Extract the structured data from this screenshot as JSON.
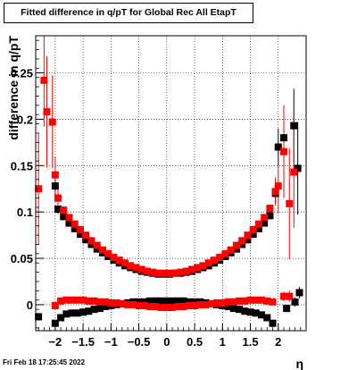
{
  "title": "Fitted difference in q/pT for Global Rec All EtapT",
  "footer_timestamp": "Fri Feb 18 17:25:45 2022",
  "chart_data": {
    "type": "scatter",
    "title": "Fitted difference in q/pT for Global Rec All EtapT",
    "xlabel": "η",
    "ylabel": "difference in q/pT",
    "xlim": [
      -2.35,
      2.5
    ],
    "ylim": [
      -0.028,
      0.29
    ],
    "grid": true,
    "x_ticks": [
      -2,
      -1.5,
      -1,
      -0.5,
      0,
      0.5,
      1,
      1.5,
      2
    ],
    "x_tick_labels": [
      "−2",
      "−1.5",
      "−1",
      "−0.5",
      "0",
      "0.5",
      "1",
      "1.5",
      "2"
    ],
    "y_ticks": [
      0,
      0.05,
      0.1,
      0.15,
      0.2,
      0.25
    ],
    "y_tick_labels": [
      "0",
      "0.05",
      "0.1",
      "0.15",
      "0.2",
      "0.25"
    ],
    "colors": {
      "black_series": "#000000",
      "red_series": "#ff0000"
    },
    "series": [
      {
        "color": "#000000",
        "marker": "square",
        "points": [
          {
            "x": -2.3,
            "y": -0.013,
            "e": 0.004
          },
          {
            "x": -2.0,
            "y": 0.128,
            "e": 0.015
          },
          {
            "x": -1.95,
            "y": 0.103,
            "e": 0.005
          },
          {
            "x": -1.85,
            "y": 0.095,
            "e": 0.003
          },
          {
            "x": -1.75,
            "y": 0.088,
            "e": 0.003
          },
          {
            "x": -1.65,
            "y": 0.082,
            "e": 0.002
          },
          {
            "x": -1.55,
            "y": 0.076,
            "e": 0.002
          },
          {
            "x": -1.45,
            "y": 0.07,
            "e": 0.002
          },
          {
            "x": -1.35,
            "y": 0.065,
            "e": 0.002
          },
          {
            "x": -1.25,
            "y": 0.06,
            "e": 0.002
          },
          {
            "x": -1.15,
            "y": 0.056,
            "e": 0.002
          },
          {
            "x": -1.05,
            "y": 0.052,
            "e": 0.002
          },
          {
            "x": -0.95,
            "y": 0.048,
            "e": 0.002
          },
          {
            "x": -0.85,
            "y": 0.045,
            "e": 0.002
          },
          {
            "x": -0.75,
            "y": 0.042,
            "e": 0.002
          },
          {
            "x": -0.65,
            "y": 0.04,
            "e": 0.002
          },
          {
            "x": -0.55,
            "y": 0.038,
            "e": 0.002
          },
          {
            "x": -0.45,
            "y": 0.036,
            "e": 0.002
          },
          {
            "x": -0.35,
            "y": 0.035,
            "e": 0.002
          },
          {
            "x": -0.25,
            "y": 0.034,
            "e": 0.002
          },
          {
            "x": -0.15,
            "y": 0.033,
            "e": 0.002
          },
          {
            "x": -0.05,
            "y": 0.033,
            "e": 0.002
          },
          {
            "x": 0.05,
            "y": 0.033,
            "e": 0.002
          },
          {
            "x": 0.15,
            "y": 0.034,
            "e": 0.002
          },
          {
            "x": 0.25,
            "y": 0.034,
            "e": 0.002
          },
          {
            "x": 0.35,
            "y": 0.035,
            "e": 0.002
          },
          {
            "x": 0.45,
            "y": 0.036,
            "e": 0.002
          },
          {
            "x": 0.55,
            "y": 0.038,
            "e": 0.002
          },
          {
            "x": 0.65,
            "y": 0.04,
            "e": 0.002
          },
          {
            "x": 0.75,
            "y": 0.042,
            "e": 0.002
          },
          {
            "x": 0.85,
            "y": 0.045,
            "e": 0.002
          },
          {
            "x": 0.95,
            "y": 0.048,
            "e": 0.002
          },
          {
            "x": 1.05,
            "y": 0.052,
            "e": 0.002
          },
          {
            "x": 1.15,
            "y": 0.056,
            "e": 0.002
          },
          {
            "x": 1.25,
            "y": 0.06,
            "e": 0.002
          },
          {
            "x": 1.35,
            "y": 0.065,
            "e": 0.002
          },
          {
            "x": 1.45,
            "y": 0.07,
            "e": 0.002
          },
          {
            "x": 1.55,
            "y": 0.076,
            "e": 0.002
          },
          {
            "x": 1.65,
            "y": 0.082,
            "e": 0.002
          },
          {
            "x": 1.75,
            "y": 0.088,
            "e": 0.003
          },
          {
            "x": 1.85,
            "y": 0.096,
            "e": 0.003
          },
          {
            "x": 1.95,
            "y": 0.12,
            "e": 0.01
          },
          {
            "x": 2.0,
            "y": 0.17,
            "e": 0.02
          },
          {
            "x": 2.1,
            "y": 0.18,
            "e": 0.03
          },
          {
            "x": 2.28,
            "y": 0.193,
            "e": 0.04
          },
          {
            "x": 2.35,
            "y": 0.147,
            "e": 0.05
          },
          {
            "x": -2.0,
            "y": -0.02,
            "e": 0.003
          },
          {
            "x": -1.9,
            "y": -0.014,
            "e": 0.002
          },
          {
            "x": -1.8,
            "y": -0.01,
            "e": 0.002
          },
          {
            "x": -1.7,
            "y": -0.009,
            "e": 0.002
          },
          {
            "x": -1.6,
            "y": -0.009,
            "e": 0.002
          },
          {
            "x": -1.5,
            "y": -0.008,
            "e": 0.002
          },
          {
            "x": -1.4,
            "y": -0.007,
            "e": 0.002
          },
          {
            "x": -1.3,
            "y": -0.005,
            "e": 0.002
          },
          {
            "x": -1.2,
            "y": -0.004,
            "e": 0.002
          },
          {
            "x": -1.1,
            "y": -0.002,
            "e": 0.002
          },
          {
            "x": -1.0,
            "y": -0.001,
            "e": 0.002
          },
          {
            "x": -0.9,
            "y": 0.0,
            "e": 0.002
          },
          {
            "x": -0.8,
            "y": 0.001,
            "e": 0.002
          },
          {
            "x": -0.7,
            "y": 0.002,
            "e": 0.002
          },
          {
            "x": -0.6,
            "y": 0.003,
            "e": 0.002
          },
          {
            "x": -0.5,
            "y": 0.003,
            "e": 0.002
          },
          {
            "x": -0.4,
            "y": 0.003,
            "e": 0.002
          },
          {
            "x": -0.3,
            "y": 0.004,
            "e": 0.002
          },
          {
            "x": -0.2,
            "y": 0.004,
            "e": 0.002
          },
          {
            "x": -0.1,
            "y": 0.004,
            "e": 0.002
          },
          {
            "x": 0.0,
            "y": 0.004,
            "e": 0.002
          },
          {
            "x": 0.1,
            "y": 0.004,
            "e": 0.002
          },
          {
            "x": 0.2,
            "y": 0.004,
            "e": 0.002
          },
          {
            "x": 0.3,
            "y": 0.004,
            "e": 0.002
          },
          {
            "x": 0.4,
            "y": 0.003,
            "e": 0.002
          },
          {
            "x": 0.5,
            "y": 0.003,
            "e": 0.002
          },
          {
            "x": 0.6,
            "y": 0.003,
            "e": 0.002
          },
          {
            "x": 0.7,
            "y": 0.002,
            "e": 0.002
          },
          {
            "x": 0.8,
            "y": 0.001,
            "e": 0.002
          },
          {
            "x": 0.9,
            "y": 0.0,
            "e": 0.002
          },
          {
            "x": 1.0,
            "y": -0.001,
            "e": 0.002
          },
          {
            "x": 1.1,
            "y": -0.002,
            "e": 0.002
          },
          {
            "x": 1.2,
            "y": -0.004,
            "e": 0.002
          },
          {
            "x": 1.3,
            "y": -0.005,
            "e": 0.002
          },
          {
            "x": 1.4,
            "y": -0.007,
            "e": 0.002
          },
          {
            "x": 1.5,
            "y": -0.008,
            "e": 0.002
          },
          {
            "x": 1.6,
            "y": -0.009,
            "e": 0.002
          },
          {
            "x": 1.7,
            "y": -0.011,
            "e": 0.002
          },
          {
            "x": 1.8,
            "y": -0.014,
            "e": 0.003
          },
          {
            "x": 1.9,
            "y": -0.02,
            "e": 0.003
          },
          {
            "x": 2.15,
            "y": -0.004,
            "e": 0.004
          },
          {
            "x": 2.3,
            "y": 0.003,
            "e": 0.005
          },
          {
            "x": 2.38,
            "y": 0.013,
            "e": 0.006
          }
        ]
      },
      {
        "color": "#ff0000",
        "marker": "square",
        "points": [
          {
            "x": -2.3,
            "y": 0.125,
            "e": 0.06
          },
          {
            "x": -2.2,
            "y": 0.242,
            "e": 0.05
          },
          {
            "x": -2.15,
            "y": 0.208,
            "e": 0.06
          },
          {
            "x": -2.05,
            "y": 0.197,
            "e": 0.05
          },
          {
            "x": -2.0,
            "y": 0.14,
            "e": 0.02
          },
          {
            "x": -1.95,
            "y": 0.115,
            "e": 0.01
          },
          {
            "x": -1.85,
            "y": 0.102,
            "e": 0.004
          },
          {
            "x": -1.75,
            "y": 0.094,
            "e": 0.003
          },
          {
            "x": -1.65,
            "y": 0.087,
            "e": 0.003
          },
          {
            "x": -1.55,
            "y": 0.081,
            "e": 0.002
          },
          {
            "x": -1.45,
            "y": 0.075,
            "e": 0.002
          },
          {
            "x": -1.35,
            "y": 0.069,
            "e": 0.002
          },
          {
            "x": -1.25,
            "y": 0.064,
            "e": 0.002
          },
          {
            "x": -1.15,
            "y": 0.059,
            "e": 0.002
          },
          {
            "x": -1.05,
            "y": 0.055,
            "e": 0.002
          },
          {
            "x": -0.95,
            "y": 0.051,
            "e": 0.002
          },
          {
            "x": -0.85,
            "y": 0.048,
            "e": 0.002
          },
          {
            "x": -0.75,
            "y": 0.045,
            "e": 0.002
          },
          {
            "x": -0.65,
            "y": 0.042,
            "e": 0.002
          },
          {
            "x": -0.55,
            "y": 0.04,
            "e": 0.002
          },
          {
            "x": -0.45,
            "y": 0.038,
            "e": 0.002
          },
          {
            "x": -0.35,
            "y": 0.036,
            "e": 0.002
          },
          {
            "x": -0.25,
            "y": 0.035,
            "e": 0.002
          },
          {
            "x": -0.15,
            "y": 0.034,
            "e": 0.002
          },
          {
            "x": -0.05,
            "y": 0.034,
            "e": 0.002
          },
          {
            "x": 0.05,
            "y": 0.034,
            "e": 0.002
          },
          {
            "x": 0.15,
            "y": 0.034,
            "e": 0.002
          },
          {
            "x": 0.25,
            "y": 0.035,
            "e": 0.002
          },
          {
            "x": 0.35,
            "y": 0.036,
            "e": 0.002
          },
          {
            "x": 0.45,
            "y": 0.038,
            "e": 0.002
          },
          {
            "x": 0.55,
            "y": 0.04,
            "e": 0.002
          },
          {
            "x": 0.65,
            "y": 0.042,
            "e": 0.002
          },
          {
            "x": 0.75,
            "y": 0.045,
            "e": 0.002
          },
          {
            "x": 0.85,
            "y": 0.048,
            "e": 0.002
          },
          {
            "x": 0.95,
            "y": 0.051,
            "e": 0.002
          },
          {
            "x": 1.05,
            "y": 0.055,
            "e": 0.002
          },
          {
            "x": 1.15,
            "y": 0.059,
            "e": 0.002
          },
          {
            "x": 1.25,
            "y": 0.064,
            "e": 0.002
          },
          {
            "x": 1.35,
            "y": 0.069,
            "e": 0.002
          },
          {
            "x": 1.45,
            "y": 0.075,
            "e": 0.002
          },
          {
            "x": 1.55,
            "y": 0.081,
            "e": 0.002
          },
          {
            "x": 1.65,
            "y": 0.087,
            "e": 0.003
          },
          {
            "x": 1.75,
            "y": 0.094,
            "e": 0.003
          },
          {
            "x": 1.85,
            "y": 0.104,
            "e": 0.004
          },
          {
            "x": 1.95,
            "y": 0.122,
            "e": 0.015
          },
          {
            "x": 2.0,
            "y": 0.128,
            "e": 0.03
          },
          {
            "x": 2.1,
            "y": 0.165,
            "e": 0.05
          },
          {
            "x": 2.2,
            "y": 0.109,
            "e": 0.06
          },
          {
            "x": 2.28,
            "y": 0.143,
            "e": 0.06
          },
          {
            "x": -2.0,
            "y": -0.001,
            "e": 0.002
          },
          {
            "x": -1.9,
            "y": 0.004,
            "e": 0.002
          },
          {
            "x": -1.8,
            "y": 0.005,
            "e": 0.002
          },
          {
            "x": -1.7,
            "y": 0.005,
            "e": 0.002
          },
          {
            "x": -1.6,
            "y": 0.005,
            "e": 0.002
          },
          {
            "x": -1.5,
            "y": 0.005,
            "e": 0.002
          },
          {
            "x": -1.4,
            "y": 0.004,
            "e": 0.002
          },
          {
            "x": -1.3,
            "y": 0.004,
            "e": 0.002
          },
          {
            "x": -1.2,
            "y": 0.003,
            "e": 0.002
          },
          {
            "x": -1.1,
            "y": 0.003,
            "e": 0.002
          },
          {
            "x": -1.0,
            "y": 0.002,
            "e": 0.002
          },
          {
            "x": -0.9,
            "y": 0.002,
            "e": 0.002
          },
          {
            "x": -0.8,
            "y": 0.001,
            "e": 0.002
          },
          {
            "x": -0.7,
            "y": 0.0,
            "e": 0.002
          },
          {
            "x": -0.6,
            "y": 0.0,
            "e": 0.002
          },
          {
            "x": -0.5,
            "y": -0.001,
            "e": 0.002
          },
          {
            "x": -0.4,
            "y": -0.001,
            "e": 0.002
          },
          {
            "x": -0.3,
            "y": -0.002,
            "e": 0.002
          },
          {
            "x": -0.2,
            "y": -0.002,
            "e": 0.002
          },
          {
            "x": -0.1,
            "y": -0.003,
            "e": 0.002
          },
          {
            "x": 0.0,
            "y": -0.003,
            "e": 0.002
          },
          {
            "x": 0.1,
            "y": -0.003,
            "e": 0.002
          },
          {
            "x": 0.2,
            "y": -0.002,
            "e": 0.002
          },
          {
            "x": 0.3,
            "y": -0.002,
            "e": 0.002
          },
          {
            "x": 0.4,
            "y": -0.001,
            "e": 0.002
          },
          {
            "x": 0.5,
            "y": -0.001,
            "e": 0.002
          },
          {
            "x": 0.6,
            "y": 0.0,
            "e": 0.002
          },
          {
            "x": 0.7,
            "y": 0.0,
            "e": 0.002
          },
          {
            "x": 0.8,
            "y": 0.001,
            "e": 0.002
          },
          {
            "x": 0.9,
            "y": 0.002,
            "e": 0.002
          },
          {
            "x": 1.0,
            "y": 0.002,
            "e": 0.002
          },
          {
            "x": 1.1,
            "y": 0.003,
            "e": 0.002
          },
          {
            "x": 1.2,
            "y": 0.003,
            "e": 0.002
          },
          {
            "x": 1.3,
            "y": 0.004,
            "e": 0.002
          },
          {
            "x": 1.4,
            "y": 0.004,
            "e": 0.002
          },
          {
            "x": 1.5,
            "y": 0.005,
            "e": 0.002
          },
          {
            "x": 1.6,
            "y": 0.005,
            "e": 0.002
          },
          {
            "x": 1.7,
            "y": 0.005,
            "e": 0.002
          },
          {
            "x": 1.8,
            "y": 0.004,
            "e": 0.002
          },
          {
            "x": 1.9,
            "y": 0.003,
            "e": 0.002
          },
          {
            "x": 2.1,
            "y": 0.009,
            "e": 0.005
          },
          {
            "x": 2.2,
            "y": 0.009,
            "e": 0.006
          }
        ]
      }
    ]
  }
}
